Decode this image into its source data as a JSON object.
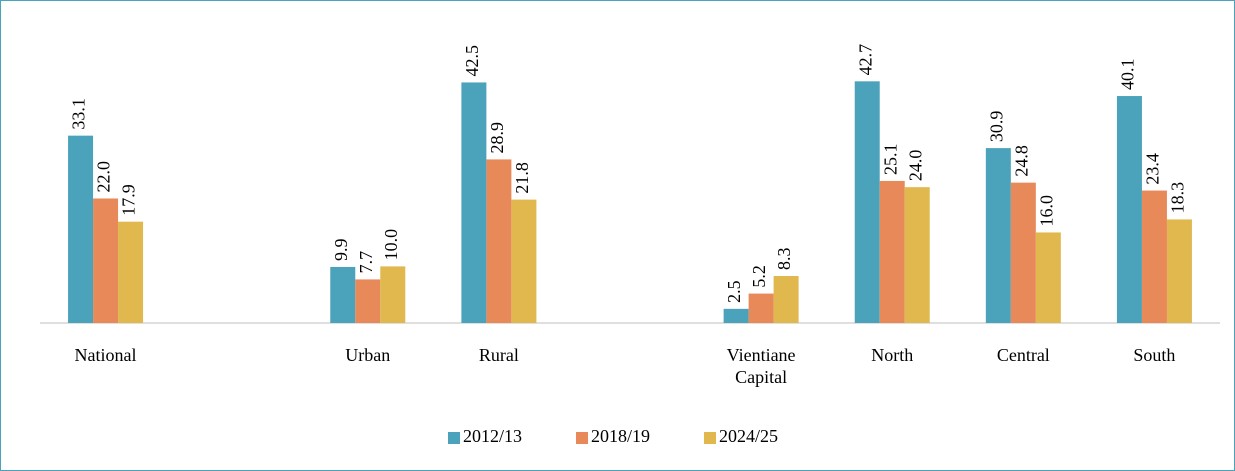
{
  "chart_data": {
    "type": "bar",
    "categories": [
      "National",
      null,
      "Urban",
      "Rural",
      null,
      "Vientiane Capital",
      "North",
      "Central",
      "South"
    ],
    "series": [
      {
        "name": "2012/13",
        "color": "#4aa3ba",
        "values": [
          33.1,
          null,
          9.9,
          42.5,
          null,
          2.5,
          42.7,
          30.9,
          40.1
        ],
        "value_labels": [
          "33.1",
          null,
          "9.9",
          "42.5",
          null,
          "2.5",
          "42.7",
          "30.9",
          "40.1"
        ]
      },
      {
        "name": "2018/19",
        "color": "#e8895a",
        "values": [
          22.0,
          null,
          7.7,
          28.9,
          null,
          5.2,
          25.1,
          24.8,
          23.4
        ],
        "value_labels": [
          "22.0",
          null,
          "7.7",
          "28.9",
          null,
          "5.2",
          "25.1",
          "24.8",
          "23.4"
        ]
      },
      {
        "name": "2024/25",
        "color": "#e0b84e",
        "values": [
          17.9,
          null,
          10.0,
          21.8,
          null,
          8.3,
          24.0,
          16.0,
          18.3
        ],
        "value_labels": [
          "17.9",
          null,
          "10.0",
          "21.8",
          null,
          "8.3",
          "24.0",
          "16.0",
          "18.3"
        ]
      }
    ],
    "ylim": [
      0,
      50
    ],
    "legend": "bottom"
  }
}
